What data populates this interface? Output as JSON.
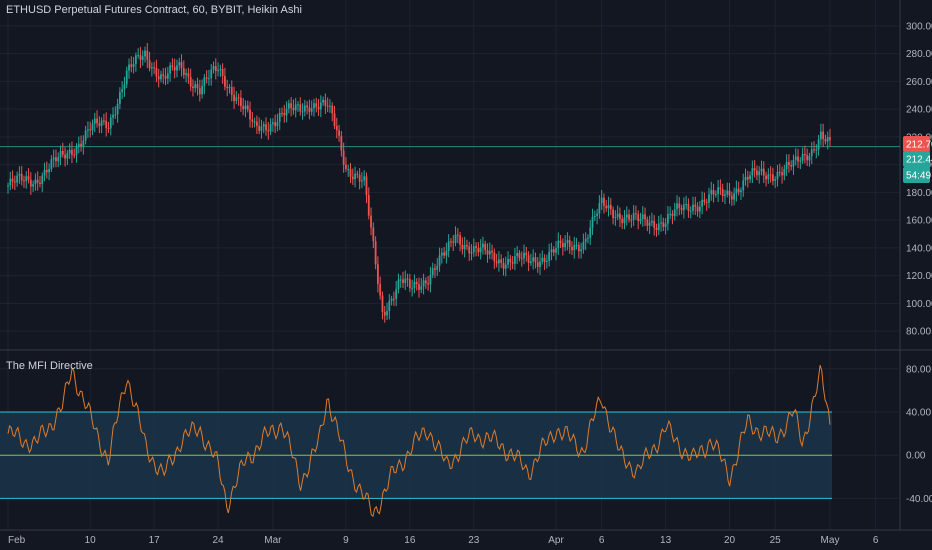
{
  "header": {
    "title": "ETHUSD Perpetual Futures Contract, 60, BYBIT, Heikin Ashi"
  },
  "indicator": {
    "title": "The MFI Directive"
  },
  "price_tags": {
    "last_price": "212.70",
    "mark_price": "212.44",
    "countdown": "54:49",
    "colors": {
      "last": "#ef5350",
      "mark": "#26a69a",
      "countdown": "#26a69a"
    }
  },
  "chart_data": [
    {
      "type": "line",
      "subtype": "heikin-ashi-candles",
      "ylim": [
        70,
        310
      ],
      "yticks": [
        "300.00",
        "280.00",
        "260.00",
        "240.00",
        "220.00",
        "200.00",
        "180.00",
        "160.00",
        "140.00",
        "120.00",
        "100.00",
        "80.00"
      ],
      "xticks": [
        "Feb",
        "10",
        "17",
        "24",
        "Mar",
        "9",
        "16",
        "23",
        "Apr",
        "6",
        "13",
        "20",
        "25",
        "May",
        "6"
      ],
      "horizontal_line": 213,
      "x": [
        "Feb 1",
        "Feb 4",
        "Feb 7",
        "Feb 10",
        "Feb 12",
        "Feb 14",
        "Feb 16",
        "Feb 18",
        "Feb 20",
        "Feb 22",
        "Feb 24",
        "Feb 26",
        "Feb 28",
        "Mar 1",
        "Mar 3",
        "Mar 5",
        "Mar 7",
        "Mar 8",
        "Mar 9",
        "Mar 11",
        "Mar 12",
        "Mar 13",
        "Mar 15",
        "Mar 16",
        "Mar 18",
        "Mar 20",
        "Mar 21",
        "Mar 23",
        "Mar 26",
        "Mar 29",
        "Apr 1",
        "Apr 4",
        "Apr 6",
        "Apr 8",
        "Apr 10",
        "Apr 13",
        "Apr 16",
        "Apr 18",
        "Apr 20",
        "Apr 22",
        "Apr 25",
        "Apr 27",
        "Apr 29",
        "Apr 30",
        "May 1"
      ],
      "values": [
        185,
        190,
        205,
        225,
        230,
        265,
        280,
        262,
        270,
        255,
        268,
        250,
        225,
        232,
        238,
        245,
        240,
        225,
        200,
        185,
        140,
        95,
        115,
        110,
        120,
        135,
        150,
        138,
        132,
        130,
        138,
        145,
        170,
        165,
        158,
        160,
        172,
        176,
        180,
        190,
        195,
        198,
        212,
        222,
        212
      ],
      "colors": {
        "up": "#26a69a",
        "down": "#ef5350"
      }
    },
    {
      "type": "line",
      "title": "The MFI Directive",
      "ylim": [
        -60,
        90
      ],
      "yticks": [
        "80.00",
        "40.00",
        "0.00",
        "-40.00"
      ],
      "bands": [
        40,
        -40
      ],
      "midline": 0,
      "x": [
        "Feb 1",
        "Feb 4",
        "Feb 7",
        "Feb 8",
        "Feb 10",
        "Feb 12",
        "Feb 14",
        "Feb 16",
        "Feb 18",
        "Feb 20",
        "Feb 22",
        "Feb 24",
        "Feb 25",
        "Feb 27",
        "Feb 29",
        "Mar 2",
        "Mar 4",
        "Mar 6",
        "Mar 7",
        "Mar 9",
        "Mar 11",
        "Mar 12",
        "Mar 14",
        "Mar 16",
        "Mar 18",
        "Mar 20",
        "Mar 23",
        "Mar 26",
        "Mar 29",
        "Apr 1",
        "Apr 4",
        "Apr 6",
        "Apr 8",
        "Apr 10",
        "Apr 13",
        "Apr 16",
        "Apr 18",
        "Apr 20",
        "Apr 22",
        "Apr 25",
        "Apr 27",
        "Apr 28",
        "Apr 29",
        "Apr 30",
        "May 1"
      ],
      "values": [
        20,
        10,
        45,
        80,
        35,
        -5,
        75,
        10,
        -20,
        15,
        25,
        -10,
        -45,
        -5,
        15,
        30,
        -25,
        10,
        55,
        -5,
        -40,
        -55,
        -20,
        5,
        25,
        -10,
        20,
        10,
        -15,
        25,
        5,
        55,
        0,
        -15,
        25,
        -5,
        15,
        -20,
        30,
        15,
        40,
        10,
        45,
        75,
        30
      ],
      "colors": {
        "line": "#e07b2a",
        "band": "#26c6da",
        "mid": "#8bc34a",
        "fill": "#1b3348"
      }
    }
  ]
}
